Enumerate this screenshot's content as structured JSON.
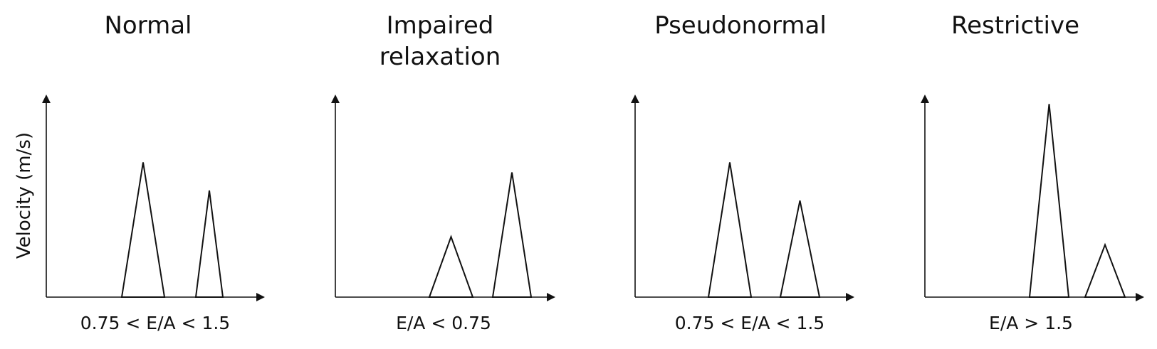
{
  "y_axis_label": "Velocity (m/s)",
  "panels": [
    {
      "title": "Normal",
      "ratio": "0.75 < E/A < 1.5",
      "e_wave": {
        "peak": 0.67
      },
      "a_wave": {
        "peak": 0.53
      }
    },
    {
      "title": "Impaired\nrelaxation",
      "ratio": "E/A < 0.75",
      "e_wave": {
        "peak": 0.3
      },
      "a_wave": {
        "peak": 0.62
      }
    },
    {
      "title": "Pseudonormal",
      "ratio": "0.75 < E/A < 1.5",
      "e_wave": {
        "peak": 0.67
      },
      "a_wave": {
        "peak": 0.48
      }
    },
    {
      "title": "Restrictive",
      "ratio": "E/A > 1.5",
      "e_wave": {
        "peak": 0.96
      },
      "a_wave": {
        "peak": 0.26
      }
    }
  ]
}
